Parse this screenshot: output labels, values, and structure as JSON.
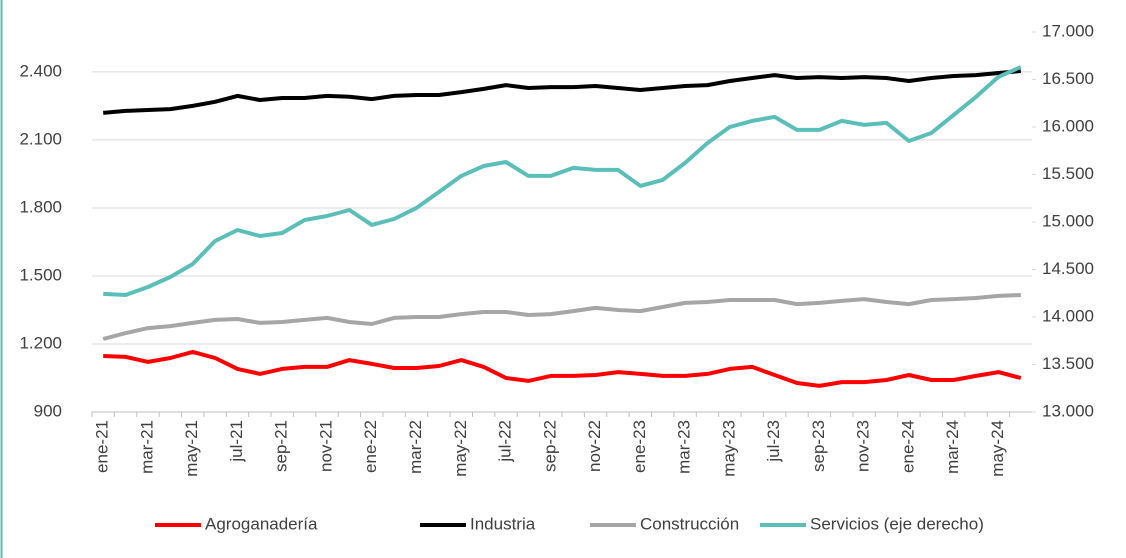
{
  "chart_data": {
    "type": "line",
    "categories": [
      "ene-21",
      null,
      "mar-21",
      null,
      "may-21",
      null,
      "jul-21",
      null,
      "sep-21",
      null,
      "nov-21",
      null,
      "ene-22",
      null,
      "mar-22",
      null,
      "may-22",
      null,
      "jul-22",
      null,
      "sep-22",
      null,
      "nov-22",
      null,
      "ene-23",
      null,
      "mar-23",
      null,
      "may-23",
      null,
      "jul-23",
      null,
      "sep-23",
      null,
      "nov-23",
      null,
      "ene-24",
      null,
      "mar-24",
      null,
      "may-24",
      null
    ],
    "series": [
      {
        "name": "Agroganadería",
        "color": "#ff0000",
        "values": [
          1147,
          1143,
          1121,
          1138,
          1165,
          1138,
          1090,
          1068,
          1090,
          1099,
          1099,
          1129,
          1112,
          1094,
          1094,
          1103,
          1129,
          1099,
          1050,
          1037,
          1059,
          1059,
          1063,
          1076,
          1068,
          1059,
          1059,
          1068,
          1090,
          1099,
          1063,
          1028,
          1015,
          1032,
          1032,
          1041,
          1063,
          1041,
          1041,
          1059,
          1076,
          1050
        ]
      },
      {
        "name": "Industria",
        "color": "#000000",
        "values": [
          2219,
          2228,
          2232,
          2236,
          2250,
          2268,
          2294,
          2276,
          2285,
          2285,
          2294,
          2290,
          2280,
          2294,
          2298,
          2298,
          2311,
          2325,
          2342,
          2329,
          2333,
          2333,
          2338,
          2329,
          2320,
          2329,
          2338,
          2342,
          2360,
          2373,
          2386,
          2373,
          2377,
          2373,
          2377,
          2373,
          2360,
          2373,
          2382,
          2386,
          2395,
          2404
        ]
      },
      {
        "name": "Construcción",
        "color": "#a6a6a6",
        "values": [
          1222,
          1248,
          1270,
          1279,
          1293,
          1306,
          1310,
          1293,
          1297,
          1306,
          1315,
          1297,
          1288,
          1315,
          1319,
          1319,
          1332,
          1341,
          1341,
          1328,
          1332,
          1345,
          1359,
          1350,
          1345,
          1363,
          1381,
          1385,
          1394,
          1394,
          1394,
          1376,
          1381,
          1390,
          1398,
          1385,
          1376,
          1394,
          1398,
          1403,
          1412,
          1416
        ]
      },
      {
        "name": "Servicios (eje derecho)",
        "color": "#5bbfb9",
        "axis": "y2",
        "values": [
          14243,
          14232,
          14316,
          14421,
          14558,
          14800,
          14916,
          14853,
          14884,
          15021,
          15063,
          15126,
          14969,
          15032,
          15148,
          15316,
          15485,
          15590,
          15632,
          15485,
          15485,
          15569,
          15548,
          15548,
          15380,
          15443,
          15622,
          15832,
          16001,
          16064,
          16106,
          15969,
          15969,
          16064,
          16022,
          16043,
          15853,
          15937,
          16127,
          16317,
          16527,
          16632
        ]
      }
    ],
    "ylim": [
      900,
      2576
    ],
    "yticks": [
      900,
      {
        "value": 1200,
        "label": "1.200"
      },
      {
        "value": 1500,
        "label": "1.500"
      },
      {
        "value": 1800,
        "label": "1.800"
      },
      {
        "value": 2100,
        "label": "2.100"
      },
      {
        "value": 2400,
        "label": "2.400"
      }
    ],
    "y2lim": [
      13000,
      17000
    ],
    "y2ticks": [
      {
        "value": 13000,
        "label": "13.000"
      },
      {
        "value": 13500,
        "label": "13.500"
      },
      {
        "value": 14000,
        "label": "14.000"
      },
      {
        "value": 14500,
        "label": "14.500"
      },
      {
        "value": 15000,
        "label": "15.000"
      },
      {
        "value": 15500,
        "label": "15.500"
      },
      {
        "value": 16000,
        "label": "16.000"
      },
      {
        "value": 16500,
        "label": "16.500"
      },
      {
        "value": 17000,
        "label": "17.000"
      }
    ],
    "grid": true,
    "legend": "bottom"
  }
}
